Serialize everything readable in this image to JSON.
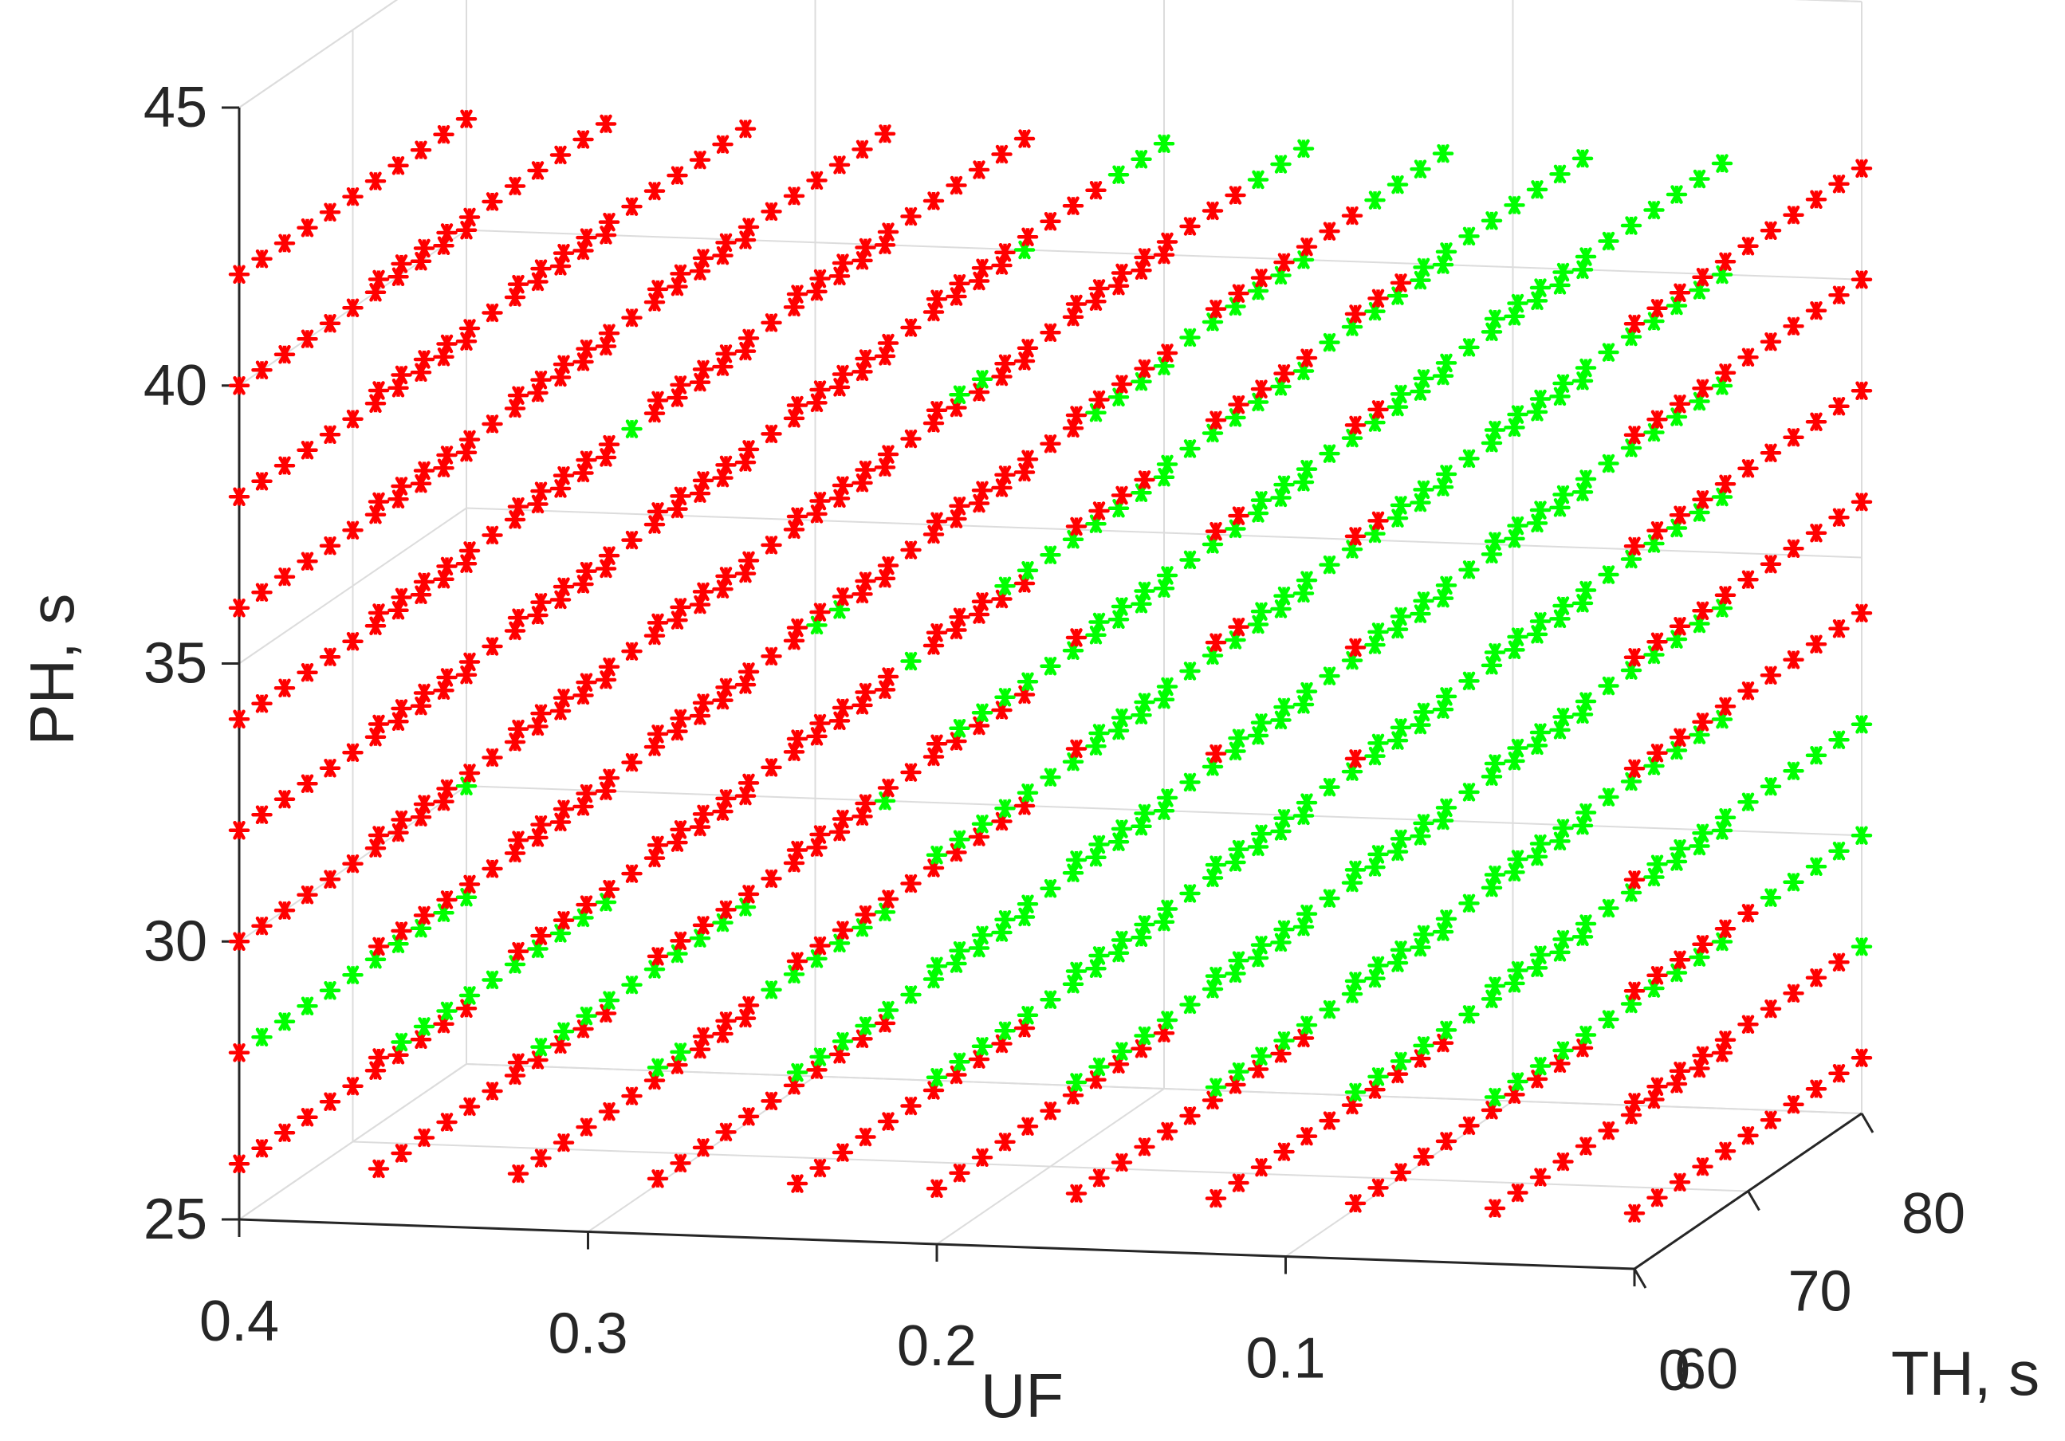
{
  "chart_data": {
    "type": "scatter",
    "projection": "3d",
    "marker": "asterisk",
    "grid": true,
    "box": true,
    "axes": {
      "x": {
        "label": "UF",
        "lim": [
          0,
          0.4
        ],
        "ticks": [
          0,
          0.1,
          0.2,
          0.3,
          0.4
        ],
        "tick_labels": [
          "0",
          "0.1",
          "0.2",
          "0.3",
          "0.4"
        ],
        "reversed": true
      },
      "y": {
        "label": "TH, s",
        "lim": [
          60,
          80
        ],
        "ticks": [
          60,
          70,
          80
        ],
        "tick_labels": [
          "60",
          "70",
          "80"
        ]
      },
      "z": {
        "label": "PH, s",
        "lim": [
          25,
          45
        ],
        "ticks": [
          25,
          30,
          35,
          40,
          45
        ],
        "tick_labels": [
          "25",
          "30",
          "35",
          "40",
          "45"
        ]
      }
    },
    "grid_values": {
      "UF": [
        0.4,
        0.36,
        0.32,
        0.28,
        0.24,
        0.2,
        0.16,
        0.12,
        0.08,
        0.04,
        0
      ],
      "TH": [
        60,
        62,
        64,
        66,
        68,
        70,
        72,
        74,
        76,
        78,
        80
      ],
      "PH": [
        26,
        28,
        30,
        32,
        34,
        36,
        38,
        40,
        42
      ]
    },
    "series": [
      {
        "color": "#ff0000",
        "description": "all grid points (UF x TH x PH) not listed in the green series"
      },
      {
        "color": "#00ff00",
        "points_by_PH_UF": {
          "28": {
            "0.4": [
              62,
              64,
              66,
              68,
              70,
              72,
              74,
              76,
              78,
              80
            ],
            "0.36": [
              62,
              64,
              66,
              68,
              70,
              72,
              74,
              76,
              78,
              80
            ],
            "0.32": [
              62,
              64,
              66,
              68,
              70,
              72,
              74,
              76,
              78,
              80
            ],
            "0.28": [
              60,
              62,
              70,
              72,
              74,
              76,
              78,
              80
            ],
            "0.24": [
              60,
              62,
              64,
              66,
              68,
              70,
              72,
              74,
              76,
              78,
              80
            ],
            "0.2": [
              60,
              62,
              64,
              66,
              68,
              70,
              72,
              74,
              76,
              78,
              80
            ],
            "0.16": [
              60,
              62,
              64,
              66,
              68,
              70,
              72,
              74,
              76,
              78,
              80
            ],
            "0.12": [
              60,
              62,
              64,
              66,
              68,
              70,
              72,
              74,
              76,
              78,
              80
            ],
            "0.08": [
              60,
              62,
              64,
              66,
              68,
              70,
              72,
              74,
              76,
              78,
              80
            ],
            "0.04": [
              60,
              62,
              64,
              66,
              68,
              70,
              72,
              74,
              76,
              78,
              80
            ],
            "0": [
              80
            ]
          },
          "30": {
            "0.4": [
              80
            ],
            "0.28": [
              80
            ],
            "0.2": [
              60,
              62,
              64,
              66,
              68,
              70,
              72,
              74,
              76,
              78,
              80
            ],
            "0.16": [
              60,
              62,
              64,
              66,
              68,
              70,
              72,
              74,
              76,
              78,
              80
            ],
            "0.12": [
              60,
              62,
              64,
              66,
              68,
              70,
              72,
              74,
              76,
              78,
              80
            ],
            "0.08": [
              60,
              62,
              64,
              66,
              68,
              70,
              72,
              74,
              76,
              78,
              80
            ],
            "0.04": [
              60,
              62,
              64,
              66,
              68,
              70,
              72,
              74,
              76,
              78,
              80
            ],
            "0": [
              72,
              74,
              76,
              78,
              80
            ]
          },
          "32": {
            "0.2": [
              60,
              62,
              64,
              66,
              68,
              70,
              72,
              74,
              76,
              78,
              80
            ],
            "0.16": [
              60,
              62,
              64,
              66,
              68,
              70,
              72,
              74,
              76,
              78,
              80
            ],
            "0.12": [
              60,
              62,
              64,
              66,
              68,
              70,
              72,
              74,
              76,
              78,
              80
            ],
            "0.08": [
              60,
              62,
              64,
              66,
              68,
              70,
              72,
              74,
              76,
              78,
              80
            ],
            "0.04": [
              60,
              62,
              64,
              66,
              68,
              70,
              72,
              74,
              76,
              78,
              80
            ],
            "0": [
              62,
              64,
              66,
              68,
              70,
              72,
              74,
              76,
              78,
              80
            ]
          },
          "34": {
            "0.28": [
              74,
              76
            ],
            "0.24": [
              70
            ],
            "0.2": [
              62,
              64,
              66,
              68,
              70,
              72,
              74,
              76,
              78,
              80
            ],
            "0.16": [
              62,
              64,
              66,
              68,
              70,
              72,
              74,
              76,
              78,
              80
            ],
            "0.12": [
              62,
              64,
              66,
              68,
              70,
              72,
              74,
              76,
              78,
              80
            ],
            "0.08": [
              62,
              64,
              66,
              68,
              70,
              72,
              74,
              76,
              78,
              80
            ],
            "0.04": [
              60,
              62,
              64,
              66,
              68,
              70,
              72,
              74,
              76,
              78,
              80
            ]
          },
          "36": {
            "0.2": [
              66,
              68,
              70,
              72,
              74,
              76,
              78,
              80
            ],
            "0.16": [
              62,
              64,
              66,
              68,
              70,
              72,
              74,
              76,
              78,
              80
            ],
            "0.12": [
              64,
              66,
              68,
              70,
              72,
              74,
              76,
              78,
              80
            ],
            "0.08": [
              62,
              64,
              66,
              68,
              70,
              72,
              74,
              76,
              78,
              80
            ],
            "0.04": [
              60,
              62,
              64,
              66,
              68,
              70,
              72,
              74,
              76,
              78,
              80
            ]
          },
          "38": {
            "0.32": [
              70
            ],
            "0.2": [
              74,
              76,
              78,
              80
            ],
            "0.16": [
              68,
              70,
              72,
              74,
              76,
              78,
              80
            ],
            "0.12": [
              64,
              66,
              68,
              70,
              72,
              74,
              76,
              78,
              80
            ],
            "0.08": [
              64,
              66,
              68,
              70,
              72,
              74,
              76,
              78,
              80
            ],
            "0.04": [
              60,
              62,
              64,
              66,
              68,
              70,
              72,
              74,
              76,
              78,
              80
            ]
          },
          "40": {
            "0.24": [
              80
            ],
            "0.2": [
              62,
              64
            ],
            "0.16": [
              70,
              72,
              74,
              76,
              78,
              80
            ],
            "0.12": [
              70,
              72,
              74,
              76,
              78,
              80
            ],
            "0.08": [
              64,
              66,
              68,
              70,
              72,
              74,
              76,
              78,
              80
            ],
            "0.04": [
              60,
              62,
              64,
              66,
              68,
              70,
              72,
              74,
              76,
              78,
              80
            ]
          },
          "42": {
            "0.2": [
              76,
              78,
              80
            ],
            "0.16": [
              76,
              78,
              80
            ],
            "0.12": [
              74,
              76,
              78,
              80
            ],
            "0.08": [
              66,
              68,
              70,
              72,
              74,
              76,
              78,
              80
            ],
            "0.04": [
              60,
              62,
              64,
              66,
              68,
              70,
              72,
              74,
              76,
              78,
              80
            ]
          }
        }
      }
    ]
  }
}
